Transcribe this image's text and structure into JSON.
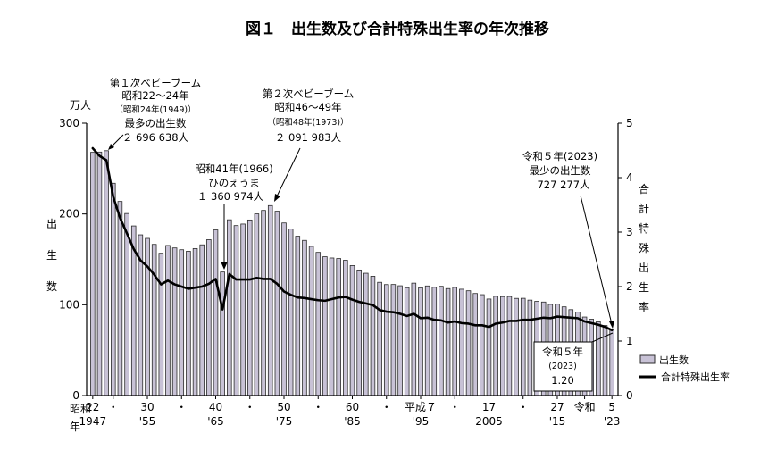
{
  "chart_data": {
    "type": "bar",
    "title": "図１　出生数及び合計特殊出生率の年次推移",
    "y_left": {
      "unit_label": "万人",
      "label_chars": [
        "出",
        "生",
        "数"
      ],
      "ticks": [
        0,
        100,
        200,
        300
      ],
      "tick_labels": [
        "0",
        "100",
        "200",
        "300"
      ],
      "range": [
        0,
        300
      ]
    },
    "y_right": {
      "label_chars": [
        "合",
        "計",
        "特",
        "殊",
        "出",
        "生",
        "率"
      ],
      "ticks": [
        0,
        1,
        2,
        3,
        4,
        5
      ],
      "tick_labels": [
        "0",
        "1",
        "2",
        "3",
        "4",
        "5"
      ],
      "range": [
        0,
        5
      ]
    },
    "x_tick_labels": [
      {
        "year": 1947,
        "top": "22",
        "bottom": "1947"
      },
      {
        "year": 1950,
        "top": "・",
        "bottom": ""
      },
      {
        "year": 1955,
        "top": "30",
        "bottom": "'55"
      },
      {
        "year": 1960,
        "top": "・",
        "bottom": ""
      },
      {
        "year": 1965,
        "top": "40",
        "bottom": "'65"
      },
      {
        "year": 1970,
        "top": "・",
        "bottom": ""
      },
      {
        "year": 1975,
        "top": "50",
        "bottom": "'75"
      },
      {
        "year": 1980,
        "top": "・",
        "bottom": ""
      },
      {
        "year": 1985,
        "top": "60",
        "bottom": "'85"
      },
      {
        "year": 1990,
        "top": "・",
        "bottom": ""
      },
      {
        "year": 1995,
        "top": "平成７",
        "bottom": "'95"
      },
      {
        "year": 2000,
        "top": "・",
        "bottom": ""
      },
      {
        "year": 2005,
        "top": "17",
        "bottom": "2005"
      },
      {
        "year": 2010,
        "top": "・",
        "bottom": ""
      },
      {
        "year": 2015,
        "top": "27",
        "bottom": "'15"
      },
      {
        "year": 2019,
        "top": "令和",
        "bottom": ""
      },
      {
        "year": 2023,
        "top": "5",
        "bottom": "'23"
      }
    ],
    "x_era_label": {
      "line1": "昭和",
      "line2": "年"
    },
    "years": [
      1947,
      1948,
      1949,
      1950,
      1951,
      1952,
      1953,
      1954,
      1955,
      1956,
      1957,
      1958,
      1959,
      1960,
      1961,
      1962,
      1963,
      1964,
      1965,
      1966,
      1967,
      1968,
      1969,
      1970,
      1971,
      1972,
      1973,
      1974,
      1975,
      1976,
      1977,
      1978,
      1979,
      1980,
      1981,
      1982,
      1983,
      1984,
      1985,
      1986,
      1987,
      1988,
      1989,
      1990,
      1991,
      1992,
      1993,
      1994,
      1995,
      1996,
      1997,
      1998,
      1999,
      2000,
      2001,
      2002,
      2003,
      2004,
      2005,
      2006,
      2007,
      2008,
      2009,
      2010,
      2011,
      2012,
      2013,
      2014,
      2015,
      2016,
      2017,
      2018,
      2019,
      2020,
      2021,
      2022,
      2023
    ],
    "series": [
      {
        "name": "出生数",
        "type": "bar",
        "axis": "left",
        "values": [
          267.9,
          268.2,
          269.7,
          233.8,
          213.8,
          200.5,
          186.8,
          177.0,
          173.1,
          166.5,
          156.7,
          165.3,
          162.6,
          160.6,
          158.9,
          161.9,
          166.0,
          171.7,
          182.4,
          136.1,
          193.6,
          187.2,
          188.9,
          193.4,
          200.1,
          203.9,
          209.2,
          203.0,
          190.1,
          183.3,
          175.5,
          170.9,
          164.3,
          157.7,
          152.9,
          151.5,
          150.9,
          149.0,
          143.2,
          138.3,
          134.7,
          131.4,
          124.7,
          122.2,
          122.3,
          120.9,
          118.8,
          123.8,
          118.7,
          120.7,
          119.2,
          120.3,
          117.8,
          119.1,
          117.1,
          115.4,
          112.4,
          111.1,
          106.3,
          109.3,
          109.0,
          109.1,
          107.0,
          107.1,
          105.1,
          103.7,
          103.0,
          100.4,
          100.6,
          97.7,
          94.6,
          91.8,
          86.5,
          84.1,
          81.2,
          77.1,
          72.7
        ]
      },
      {
        "name": "合計特殊出生率",
        "type": "line",
        "axis": "right",
        "values": [
          4.54,
          4.4,
          4.32,
          3.65,
          3.26,
          2.98,
          2.69,
          2.48,
          2.37,
          2.22,
          2.04,
          2.11,
          2.04,
          2.0,
          1.96,
          1.98,
          2.0,
          2.05,
          2.14,
          1.58,
          2.23,
          2.13,
          2.13,
          2.13,
          2.16,
          2.14,
          2.14,
          2.05,
          1.91,
          1.85,
          1.8,
          1.79,
          1.77,
          1.75,
          1.74,
          1.77,
          1.8,
          1.81,
          1.76,
          1.72,
          1.69,
          1.66,
          1.57,
          1.54,
          1.53,
          1.5,
          1.46,
          1.5,
          1.42,
          1.43,
          1.39,
          1.38,
          1.34,
          1.36,
          1.33,
          1.32,
          1.29,
          1.29,
          1.26,
          1.32,
          1.34,
          1.37,
          1.37,
          1.39,
          1.39,
          1.41,
          1.43,
          1.42,
          1.45,
          1.44,
          1.43,
          1.42,
          1.36,
          1.33,
          1.3,
          1.26,
          1.2
        ]
      }
    ],
    "legend": [
      {
        "name": "出生数",
        "kind": "bar"
      },
      {
        "name": "合計特殊出生率",
        "kind": "line"
      }
    ],
    "annotations": {
      "boom1": {
        "line1": "第１次ベビーブーム",
        "line2": "昭和22～24年",
        "line3": "（昭和24年(1949)）",
        "line4": "最多の出生数",
        "line5": "２ 696 638人"
      },
      "hinoeuma": {
        "line1": "昭和41年(1966)",
        "line2": "ひのえうま",
        "line3": "１ 360 974人"
      },
      "boom2": {
        "line1": "第２次ベビーブーム",
        "line2": "昭和46～49年",
        "line3": "（昭和48年(1973)）",
        "line4": "２ 091 983人"
      },
      "latest": {
        "line1": "令和５年(2023)",
        "line2": "最少の出生数",
        "line3": "727 277人"
      },
      "rate_box": {
        "line1": "令和５年",
        "line2": "(2023)",
        "line3": "1.20"
      }
    },
    "colors": {
      "bar_fill": "#c8c2d6",
      "bar_stroke": "#2b2b2b",
      "line": "#000000"
    }
  }
}
